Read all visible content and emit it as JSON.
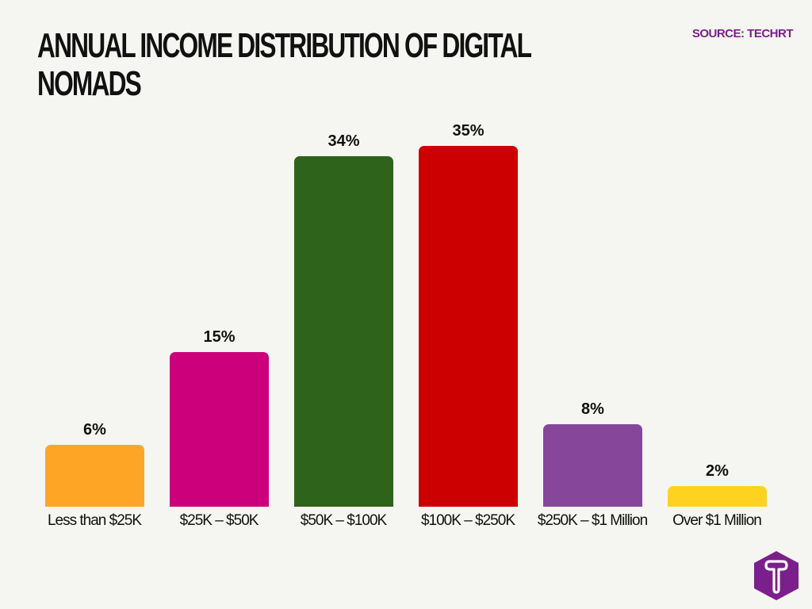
{
  "header": {
    "title": "Annual Income Distribution of Digital Nomads",
    "source": "SOURCE: TECHRT"
  },
  "colors": {
    "background": "#f5f5f1",
    "source_text": "#7b1f8c",
    "logo": "#7b1f8c"
  },
  "logo": {
    "icon": "techrt-t-hexagon-icon"
  },
  "bars": [
    {
      "label": "Less than $25K",
      "value": 6,
      "value_label": "6%",
      "color": "#ffa526"
    },
    {
      "label": "$25K – $50K",
      "value": 15,
      "value_label": "15%",
      "color": "#cc007a"
    },
    {
      "label": "$50K – $100K",
      "value": 34,
      "value_label": "34%",
      "color": "#2e631b"
    },
    {
      "label": "$100K – $250K",
      "value": 35,
      "value_label": "35%",
      "color": "#cc0000"
    },
    {
      "label": "$250K – $1 Million",
      "value": 8,
      "value_label": "8%",
      "color": "#86479a"
    },
    {
      "label": "Over $1 Million",
      "value": 2,
      "value_label": "2%",
      "color": "#ffd21f"
    }
  ],
  "chart_data": {
    "type": "bar",
    "title": "Annual Income Distribution of Digital Nomads",
    "categories": [
      "Less than $25K",
      "$25K – $50K",
      "$50K – $100K",
      "$100K – $250K",
      "$250K – $1 Million",
      "Over $1 Million"
    ],
    "values": [
      6,
      15,
      34,
      35,
      8,
      2
    ],
    "value_labels": [
      "6%",
      "15%",
      "34%",
      "35%",
      "8%",
      "2%"
    ],
    "colors": [
      "#ffa526",
      "#cc007a",
      "#2e631b",
      "#cc0000",
      "#86479a",
      "#ffd21f"
    ],
    "xlabel": "",
    "ylabel": "",
    "ylim": [
      0,
      35
    ],
    "grid": false,
    "legend": "none",
    "annotations": [
      "SOURCE: TECHRT"
    ]
  }
}
